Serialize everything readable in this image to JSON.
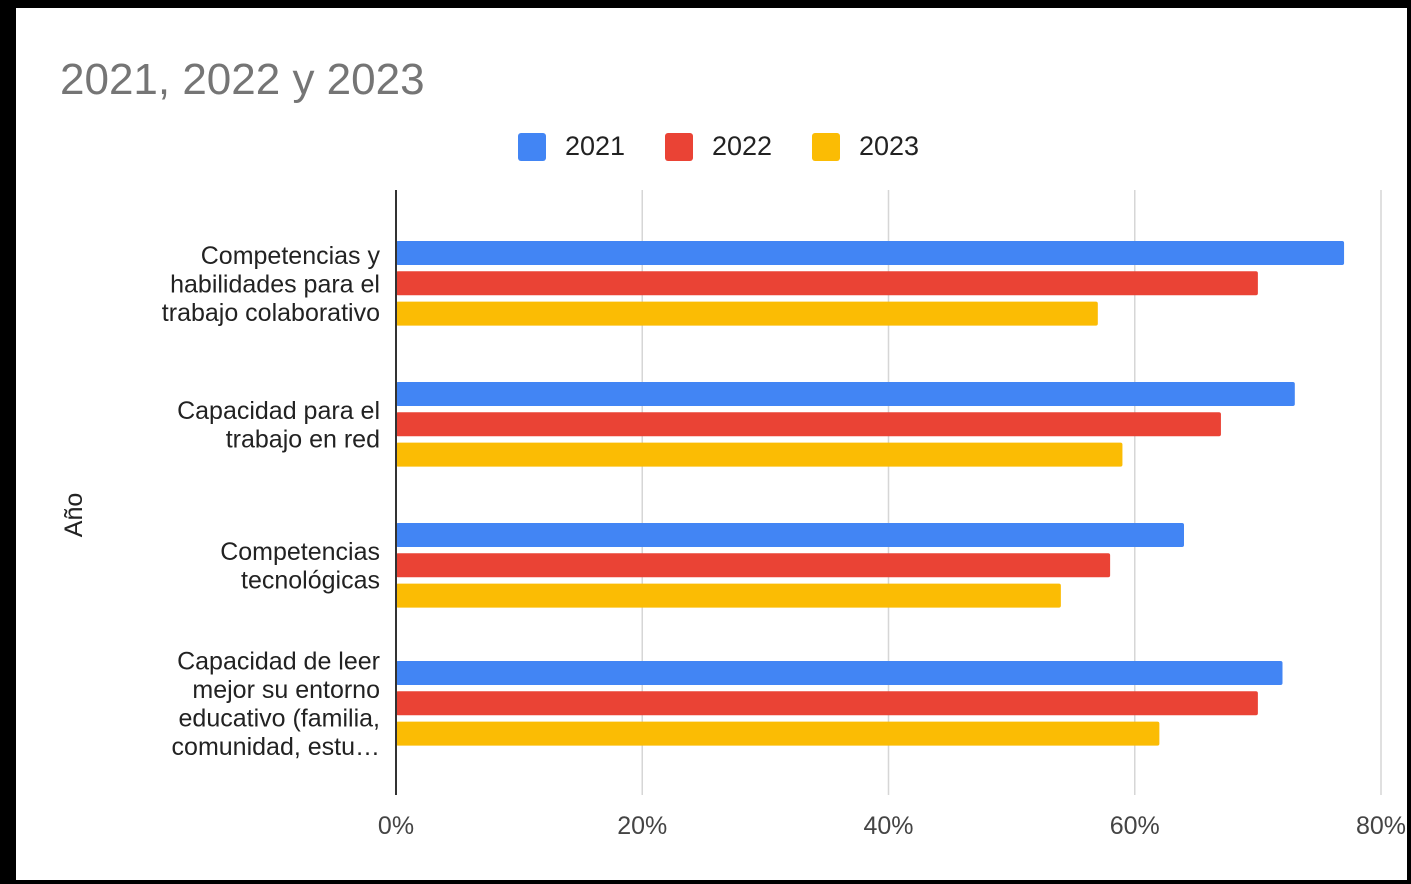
{
  "chart_data": {
    "type": "bar",
    "orientation": "horizontal",
    "title": "2021, 2022 y 2023",
    "ylabel": "Año",
    "xlabel": "",
    "categories": [
      [
        "Competencias y",
        "habilidades para el",
        "trabajo colaborativo"
      ],
      [
        "Capacidad para el",
        "trabajo en red"
      ],
      [
        "Competencias",
        "tecnológicas"
      ],
      [
        "Capacidad de leer",
        "mejor su entorno",
        "educativo (familia,",
        "comunidad, estu…"
      ]
    ],
    "series": [
      {
        "name": "2021",
        "color": "#4285F4",
        "values": [
          77,
          73,
          64,
          72
        ]
      },
      {
        "name": "2022",
        "color": "#EA4335",
        "values": [
          70,
          67,
          58,
          70
        ]
      },
      {
        "name": "2023",
        "color": "#FBBC04",
        "values": [
          57,
          59,
          54,
          62
        ]
      }
    ],
    "xticks": [
      "0%",
      "20%",
      "40%",
      "60%",
      "80%"
    ],
    "xlim": [
      0,
      80
    ],
    "legend_position": "top",
    "grid": true
  }
}
